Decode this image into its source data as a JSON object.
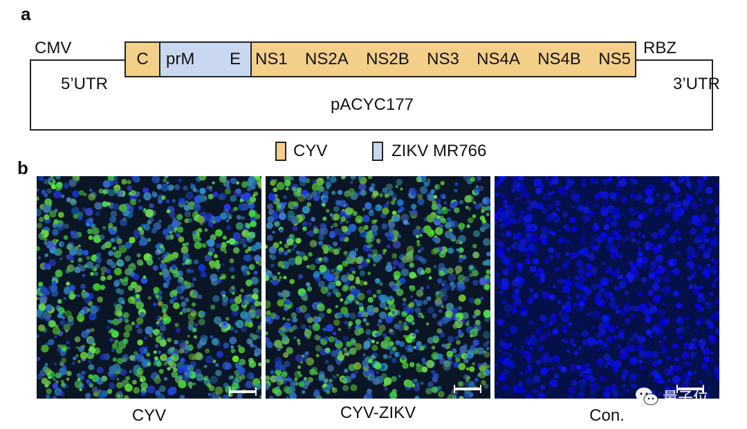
{
  "panel_a": {
    "letter": "a",
    "promoter": "CMV",
    "ribozyme": "RBZ",
    "utr5": "5’UTR",
    "utr3": "3’UTR",
    "vector": "pACYC177",
    "segments": {
      "c": "C",
      "prm": "prM",
      "e": "E",
      "ns": [
        "NS1",
        "NS2A",
        "NS2B",
        "NS3",
        "NS4A",
        "NS4B",
        "NS5"
      ]
    },
    "legend": [
      {
        "label": "CYV",
        "color": "#f4cf8a"
      },
      {
        "label": "ZIKV MR766",
        "color": "#c9d8f0"
      }
    ]
  },
  "panel_b": {
    "letter": "b",
    "images": [
      {
        "caption": "CYV",
        "stain": "green-blue"
      },
      {
        "caption": "CYV-ZIKV",
        "stain": "green-blue"
      },
      {
        "caption": "Con.",
        "stain": "blue"
      }
    ]
  },
  "watermark": "量子位"
}
